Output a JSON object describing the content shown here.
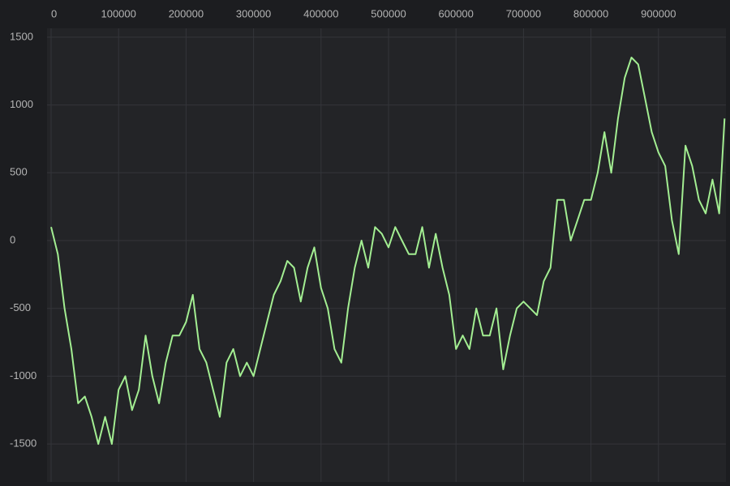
{
  "chart_data": {
    "type": "line",
    "x": [
      0,
      10000,
      20000,
      30000,
      40000,
      50000,
      60000,
      70000,
      80000,
      90000,
      100000,
      110000,
      120000,
      130000,
      140000,
      150000,
      160000,
      170000,
      180000,
      190000,
      200000,
      210000,
      220000,
      230000,
      240000,
      250000,
      260000,
      270000,
      280000,
      290000,
      300000,
      310000,
      320000,
      330000,
      340000,
      350000,
      360000,
      370000,
      380000,
      390000,
      400000,
      410000,
      420000,
      430000,
      440000,
      450000,
      460000,
      470000,
      480000,
      490000,
      500000,
      510000,
      520000,
      530000,
      540000,
      550000,
      560000,
      570000,
      580000,
      590000,
      600000,
      610000,
      620000,
      630000,
      640000,
      650000,
      660000,
      670000,
      680000,
      690000,
      700000,
      710000,
      720000,
      730000,
      740000,
      750000,
      760000,
      770000,
      780000,
      790000,
      800000,
      810000,
      820000,
      830000,
      840000,
      850000,
      860000,
      870000,
      880000,
      890000,
      900000,
      910000,
      920000,
      930000,
      940000,
      950000,
      960000,
      970000,
      980000,
      990000,
      998000
    ],
    "values": [
      100,
      -100,
      -500,
      -800,
      -1200,
      -1150,
      -1300,
      -1500,
      -1300,
      -1500,
      -1100,
      -1000,
      -1250,
      -1100,
      -700,
      -1000,
      -1200,
      -900,
      -700,
      -700,
      -600,
      -400,
      -800,
      -900,
      -1100,
      -1300,
      -900,
      -800,
      -1000,
      -900,
      -1000,
      -800,
      -600,
      -400,
      -300,
      -150,
      -200,
      -450,
      -200,
      -50,
      -350,
      -500,
      -800,
      -900,
      -500,
      -200,
      0,
      -200,
      100,
      50,
      -50,
      100,
      0,
      -100,
      -100,
      100,
      -200,
      50,
      -200,
      -400,
      -800,
      -700,
      -800,
      -500,
      -700,
      -700,
      -500,
      -950,
      -700,
      -500,
      -450,
      -500,
      -550,
      -300,
      -200,
      300,
      300,
      0,
      150,
      300,
      300,
      500,
      800,
      500,
      900,
      1200,
      1350,
      1300,
      1050,
      800,
      650,
      550,
      150,
      -100,
      700,
      550,
      300,
      200,
      450,
      200,
      900
    ],
    "color": "#a3ee92",
    "xlim": [
      -6000,
      1000000
    ],
    "ylim": [
      -1780,
      1565
    ],
    "xticks": [
      0,
      100000,
      200000,
      300000,
      400000,
      500000,
      600000,
      700000,
      800000,
      900000
    ],
    "yticks": [
      1500,
      1000,
      500,
      0,
      -500,
      -1000,
      -1500
    ],
    "grid": true
  }
}
